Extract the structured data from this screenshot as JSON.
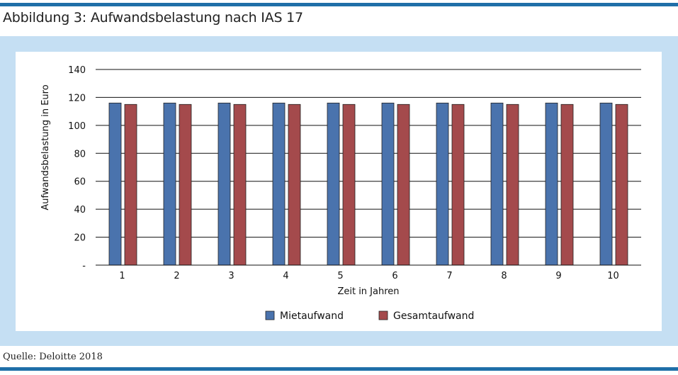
{
  "figure": {
    "title": "Abbildung 3: Aufwandsbelastung nach IAS 17",
    "source": "Quelle: Deloitte 2018"
  },
  "colors": {
    "rule": "#1f6fa8",
    "panel": "#c5dff3",
    "mietaufwand": "#4a73ad",
    "gesamtaufwand": "#a44a4c"
  },
  "chart_data": {
    "type": "bar",
    "categories": [
      "1",
      "2",
      "3",
      "4",
      "5",
      "6",
      "7",
      "8",
      "9",
      "10"
    ],
    "series": [
      {
        "name": "Mietaufwand",
        "values": [
          116,
          116,
          116,
          116,
          116,
          116,
          116,
          116,
          116,
          116
        ]
      },
      {
        "name": "Gesamtaufwand",
        "values": [
          115,
          115,
          115,
          115,
          115,
          115,
          115,
          115,
          115,
          115
        ]
      }
    ],
    "xlabel": "Zeit in Jahren",
    "ylabel": "Aufwandsbelastung in Euro",
    "ylim": [
      0,
      140
    ],
    "yticks": [
      0,
      20,
      40,
      60,
      80,
      100,
      120,
      140
    ],
    "ytick_labels": [
      "-",
      "20",
      "40",
      "60",
      "80",
      "100",
      "120",
      "140"
    ],
    "grid": "horizontal",
    "legend": "bottom-center"
  }
}
